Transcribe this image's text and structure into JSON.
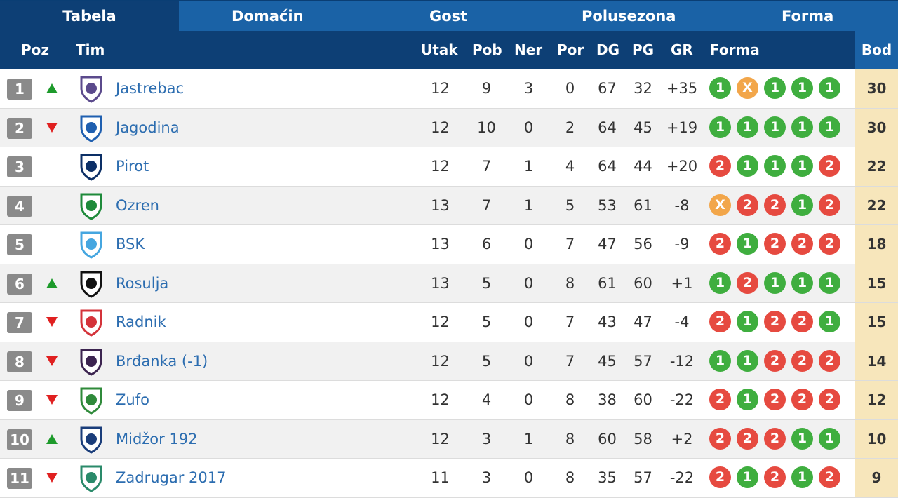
{
  "tabs": [
    "Tabela",
    "Domaćin",
    "Gost",
    "Polusezona",
    "Forma"
  ],
  "columns": {
    "poz": "Poz",
    "tim": "Tim",
    "utak": "Utak",
    "pob": "Pob",
    "ner": "Ner",
    "por": "Por",
    "dg": "DG",
    "pg": "PG",
    "gr": "GR",
    "forma": "Forma",
    "bod": "Bod"
  },
  "colors": {
    "win": "#3fae3f",
    "draw": "#f2a64a",
    "loss": "#e64a40",
    "up": "#1d9a2b",
    "down": "#e02020"
  },
  "rows": [
    {
      "pos": "1",
      "trend": "up",
      "logo": "jastrebac-crest-icon",
      "team": "Jastrebac",
      "utak": "12",
      "pob": "9",
      "ner": "3",
      "por": "0",
      "dg": "67",
      "pg": "32",
      "gr": "+35",
      "form": [
        "1",
        "X",
        "1",
        "1",
        "1"
      ],
      "bod": "30"
    },
    {
      "pos": "2",
      "trend": "down",
      "logo": "jagodina-crest-icon",
      "team": "Jagodina",
      "utak": "12",
      "pob": "10",
      "ner": "0",
      "por": "2",
      "dg": "64",
      "pg": "45",
      "gr": "+19",
      "form": [
        "1",
        "1",
        "1",
        "1",
        "1"
      ],
      "bod": "30"
    },
    {
      "pos": "3",
      "trend": "",
      "logo": "pirot-crest-icon",
      "team": "Pirot",
      "utak": "12",
      "pob": "7",
      "ner": "1",
      "por": "4",
      "dg": "64",
      "pg": "44",
      "gr": "+20",
      "form": [
        "2",
        "1",
        "1",
        "1",
        "2"
      ],
      "bod": "22"
    },
    {
      "pos": "4",
      "trend": "",
      "logo": "ozren-crest-icon",
      "team": "Ozren",
      "utak": "13",
      "pob": "7",
      "ner": "1",
      "por": "5",
      "dg": "53",
      "pg": "61",
      "gr": "-8",
      "form": [
        "X",
        "2",
        "2",
        "1",
        "2"
      ],
      "bod": "22"
    },
    {
      "pos": "5",
      "trend": "",
      "logo": "bsk-crest-icon",
      "team": "BSK",
      "utak": "13",
      "pob": "6",
      "ner": "0",
      "por": "7",
      "dg": "47",
      "pg": "56",
      "gr": "-9",
      "form": [
        "2",
        "1",
        "2",
        "2",
        "2"
      ],
      "bod": "18"
    },
    {
      "pos": "6",
      "trend": "up",
      "logo": "rosulja-crest-icon",
      "team": "Rosulja",
      "utak": "13",
      "pob": "5",
      "ner": "0",
      "por": "8",
      "dg": "61",
      "pg": "60",
      "gr": "+1",
      "form": [
        "1",
        "2",
        "1",
        "1",
        "1"
      ],
      "bod": "15"
    },
    {
      "pos": "7",
      "trend": "down",
      "logo": "radnik-crest-icon",
      "team": "Radnik",
      "utak": "12",
      "pob": "5",
      "ner": "0",
      "por": "7",
      "dg": "43",
      "pg": "47",
      "gr": "-4",
      "form": [
        "2",
        "1",
        "2",
        "2",
        "1"
      ],
      "bod": "15"
    },
    {
      "pos": "8",
      "trend": "down",
      "logo": "brdanka-crest-icon",
      "team": "Brđanka (-1)",
      "utak": "12",
      "pob": "5",
      "ner": "0",
      "por": "7",
      "dg": "45",
      "pg": "57",
      "gr": "-12",
      "form": [
        "1",
        "1",
        "2",
        "2",
        "2"
      ],
      "bod": "14"
    },
    {
      "pos": "9",
      "trend": "down",
      "logo": "zufo-crest-icon",
      "team": "Zufo",
      "utak": "12",
      "pob": "4",
      "ner": "0",
      "por": "8",
      "dg": "38",
      "pg": "60",
      "gr": "-22",
      "form": [
        "2",
        "1",
        "2",
        "2",
        "2"
      ],
      "bod": "12"
    },
    {
      "pos": "10",
      "trend": "up",
      "logo": "midzor-crest-icon",
      "team": "Midžor 192",
      "utak": "12",
      "pob": "3",
      "ner": "1",
      "por": "8",
      "dg": "60",
      "pg": "58",
      "gr": "+2",
      "form": [
        "2",
        "2",
        "2",
        "1",
        "1"
      ],
      "bod": "10"
    },
    {
      "pos": "11",
      "trend": "down",
      "logo": "zadrugar-crest-icon",
      "team": "Zadrugar 2017",
      "utak": "11",
      "pob": "3",
      "ner": "0",
      "por": "8",
      "dg": "35",
      "pg": "57",
      "gr": "-22",
      "form": [
        "2",
        "1",
        "2",
        "1",
        "2"
      ],
      "bod": "9"
    }
  ]
}
